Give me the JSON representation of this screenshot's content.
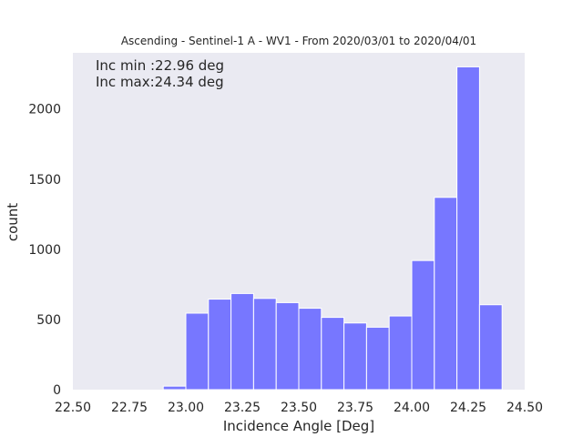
{
  "chart_data": {
    "type": "bar",
    "title": "Ascending - Sentinel-1 A - WV1 - From 2020/03/01 to 2020/04/01",
    "xlabel": "Incidence Angle [Deg]",
    "ylabel": "count",
    "xlim": [
      22.5,
      24.5
    ],
    "ylim": [
      0,
      2400
    ],
    "xticks": [
      "22.50",
      "22.75",
      "23.00",
      "23.25",
      "23.50",
      "23.75",
      "24.00",
      "24.25",
      "24.50"
    ],
    "yticks": [
      "0",
      "500",
      "1000",
      "1500",
      "2000"
    ],
    "grid": false,
    "bin_edges": [
      22.9,
      23.0,
      23.1,
      23.2,
      23.3,
      23.4,
      23.5,
      23.6,
      23.7,
      23.8,
      23.9,
      24.0,
      24.1,
      24.2,
      24.3,
      24.4
    ],
    "values": [
      25,
      545,
      645,
      685,
      650,
      620,
      580,
      515,
      475,
      445,
      525,
      920,
      1370,
      2300,
      605
    ],
    "annotations": [
      "Inc min :22.96 deg",
      "Inc max:24.34 deg"
    ],
    "colors": {
      "bar": "#7777ff",
      "background": "#eaeaf2",
      "bar_edge": "#ffffff"
    }
  }
}
